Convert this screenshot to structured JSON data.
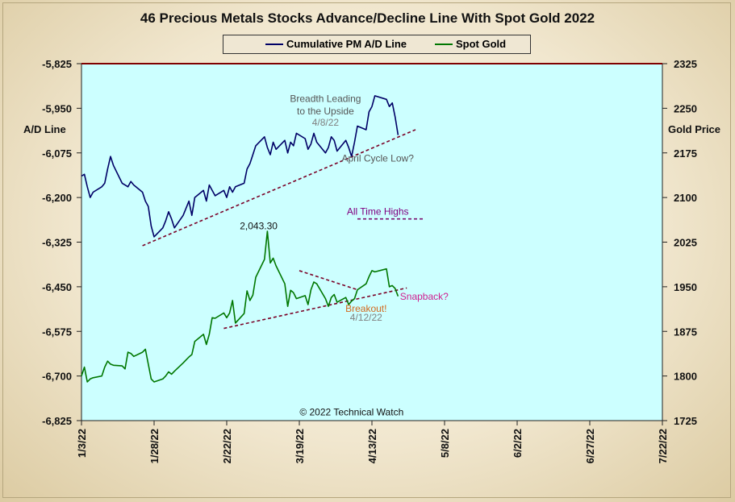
{
  "chart_data": {
    "type": "line",
    "title": "46 Precious Metals Stocks Advance/Decline Line With Spot Gold 2022",
    "ylabel_left": "A/D Line",
    "ylabel_right": "Gold Price",
    "ylim_left": [
      -6825,
      -5825
    ],
    "ylim_right": [
      1725,
      2325
    ],
    "yticks_left": [
      "-5,825",
      "-5,950",
      "-6,075",
      "-6,200",
      "-6,325",
      "-6,450",
      "-6,575",
      "-6,700",
      "-6,825"
    ],
    "yticks_right": [
      "2325",
      "2250",
      "2175",
      "2100",
      "2025",
      "1950",
      "1875",
      "1800",
      "1725"
    ],
    "xticks": [
      "1/3/22",
      "1/28/22",
      "2/22/22",
      "3/19/22",
      "4/13/22",
      "5/8/22",
      "6/2/22",
      "6/27/22",
      "7/22/22"
    ],
    "legend_placement": "top-center",
    "series": [
      {
        "name": "Cumulative PM A/D Line",
        "color": "#000066",
        "axis": "left",
        "points": [
          [
            "2022-01-03",
            -6140
          ],
          [
            "2022-01-04",
            -6135
          ],
          [
            "2022-01-05",
            -6170
          ],
          [
            "2022-01-06",
            -6200
          ],
          [
            "2022-01-07",
            -6185
          ],
          [
            "2022-01-10",
            -6170
          ],
          [
            "2022-01-11",
            -6160
          ],
          [
            "2022-01-12",
            -6120
          ],
          [
            "2022-01-13",
            -6085
          ],
          [
            "2022-01-14",
            -6110
          ],
          [
            "2022-01-17",
            -6160
          ],
          [
            "2022-01-18",
            -6165
          ],
          [
            "2022-01-19",
            -6170
          ],
          [
            "2022-01-20",
            -6155
          ],
          [
            "2022-01-21",
            -6165
          ],
          [
            "2022-01-24",
            -6185
          ],
          [
            "2022-01-25",
            -6210
          ],
          [
            "2022-01-26",
            -6225
          ],
          [
            "2022-01-27",
            -6280
          ],
          [
            "2022-01-28",
            -6310
          ],
          [
            "2022-01-31",
            -6285
          ],
          [
            "2022-02-01",
            -6265
          ],
          [
            "2022-02-02",
            -6240
          ],
          [
            "2022-02-03",
            -6260
          ],
          [
            "2022-02-04",
            -6285
          ],
          [
            "2022-02-07",
            -6250
          ],
          [
            "2022-02-08",
            -6230
          ],
          [
            "2022-02-09",
            -6210
          ],
          [
            "2022-02-10",
            -6250
          ],
          [
            "2022-02-11",
            -6200
          ],
          [
            "2022-02-14",
            -6180
          ],
          [
            "2022-02-15",
            -6210
          ],
          [
            "2022-02-16",
            -6165
          ],
          [
            "2022-02-17",
            -6180
          ],
          [
            "2022-02-18",
            -6195
          ],
          [
            "2022-02-21",
            -6180
          ],
          [
            "2022-02-22",
            -6200
          ],
          [
            "2022-02-23",
            -6170
          ],
          [
            "2022-02-24",
            -6185
          ],
          [
            "2022-02-25",
            -6170
          ],
          [
            "2022-02-28",
            -6160
          ],
          [
            "2022-03-01",
            -6120
          ],
          [
            "2022-03-02",
            -6105
          ],
          [
            "2022-03-03",
            -6080
          ],
          [
            "2022-03-04",
            -6055
          ],
          [
            "2022-03-07",
            -6030
          ],
          [
            "2022-03-08",
            -6060
          ],
          [
            "2022-03-09",
            -6080
          ],
          [
            "2022-03-10",
            -6045
          ],
          [
            "2022-03-11",
            -6065
          ],
          [
            "2022-03-14",
            -6040
          ],
          [
            "2022-03-15",
            -6075
          ],
          [
            "2022-03-16",
            -6045
          ],
          [
            "2022-03-17",
            -6055
          ],
          [
            "2022-03-18",
            -6020
          ],
          [
            "2022-03-21",
            -6035
          ],
          [
            "2022-03-22",
            -6065
          ],
          [
            "2022-03-23",
            -6050
          ],
          [
            "2022-03-24",
            -6020
          ],
          [
            "2022-03-25",
            -6045
          ],
          [
            "2022-03-28",
            -6075
          ],
          [
            "2022-03-29",
            -6060
          ],
          [
            "2022-03-30",
            -6030
          ],
          [
            "2022-03-31",
            -6040
          ],
          [
            "2022-04-01",
            -6070
          ],
          [
            "2022-04-04",
            -6040
          ],
          [
            "2022-04-05",
            -6060
          ],
          [
            "2022-04-06",
            -6085
          ],
          [
            "2022-04-07",
            -6045
          ],
          [
            "2022-04-08",
            -6000
          ],
          [
            "2022-04-11",
            -6010
          ],
          [
            "2022-04-12",
            -5960
          ],
          [
            "2022-04-13",
            -5945
          ],
          [
            "2022-04-14",
            -5915
          ],
          [
            "2022-04-18",
            -5925
          ],
          [
            "2022-04-19",
            -5945
          ],
          [
            "2022-04-20",
            -5935
          ],
          [
            "2022-04-21",
            -5975
          ],
          [
            "2022-04-22",
            -6025
          ]
        ]
      },
      {
        "name": "Spot Gold",
        "color": "#007700",
        "axis": "right",
        "points": [
          [
            "2022-01-03",
            1800
          ],
          [
            "2022-01-04",
            1815
          ],
          [
            "2022-01-05",
            1790
          ],
          [
            "2022-01-06",
            1795
          ],
          [
            "2022-01-07",
            1797
          ],
          [
            "2022-01-10",
            1800
          ],
          [
            "2022-01-11",
            1815
          ],
          [
            "2022-01-12",
            1825
          ],
          [
            "2022-01-13",
            1820
          ],
          [
            "2022-01-14",
            1818
          ],
          [
            "2022-01-17",
            1817
          ],
          [
            "2022-01-18",
            1812
          ],
          [
            "2022-01-19",
            1840
          ],
          [
            "2022-01-20",
            1838
          ],
          [
            "2022-01-21",
            1833
          ],
          [
            "2022-01-24",
            1840
          ],
          [
            "2022-01-25",
            1845
          ],
          [
            "2022-01-26",
            1820
          ],
          [
            "2022-01-27",
            1795
          ],
          [
            "2022-01-28",
            1790
          ],
          [
            "2022-01-31",
            1795
          ],
          [
            "2022-02-01",
            1800
          ],
          [
            "2022-02-02",
            1807
          ],
          [
            "2022-02-03",
            1803
          ],
          [
            "2022-02-04",
            1808
          ],
          [
            "2022-02-07",
            1822
          ],
          [
            "2022-02-08",
            1827
          ],
          [
            "2022-02-09",
            1832
          ],
          [
            "2022-02-10",
            1836
          ],
          [
            "2022-02-11",
            1858
          ],
          [
            "2022-02-14",
            1870
          ],
          [
            "2022-02-15",
            1853
          ],
          [
            "2022-02-16",
            1870
          ],
          [
            "2022-02-17",
            1898
          ],
          [
            "2022-02-18",
            1897
          ],
          [
            "2022-02-21",
            1906
          ],
          [
            "2022-02-22",
            1898
          ],
          [
            "2022-02-23",
            1906
          ],
          [
            "2022-02-24",
            1927
          ],
          [
            "2022-02-25",
            1889
          ],
          [
            "2022-02-28",
            1905
          ],
          [
            "2022-03-01",
            1943
          ],
          [
            "2022-03-02",
            1927
          ],
          [
            "2022-03-03",
            1936
          ],
          [
            "2022-03-04",
            1966
          ],
          [
            "2022-03-07",
            1996
          ],
          [
            "2022-03-08",
            2043.3
          ],
          [
            "2022-03-09",
            1990
          ],
          [
            "2022-03-10",
            1998
          ],
          [
            "2022-03-11",
            1985
          ],
          [
            "2022-03-14",
            1955
          ],
          [
            "2022-03-15",
            1917
          ],
          [
            "2022-03-16",
            1944
          ],
          [
            "2022-03-17",
            1940
          ],
          [
            "2022-03-18",
            1930
          ],
          [
            "2022-03-21",
            1935
          ],
          [
            "2022-03-22",
            1920
          ],
          [
            "2022-03-23",
            1945
          ],
          [
            "2022-03-24",
            1958
          ],
          [
            "2022-03-25",
            1955
          ],
          [
            "2022-03-28",
            1930
          ],
          [
            "2022-03-29",
            1917
          ],
          [
            "2022-03-30",
            1932
          ],
          [
            "2022-03-31",
            1937
          ],
          [
            "2022-04-01",
            1924
          ],
          [
            "2022-04-04",
            1932
          ],
          [
            "2022-04-05",
            1920
          ],
          [
            "2022-04-06",
            1926
          ],
          [
            "2022-04-07",
            1930
          ],
          [
            "2022-04-08",
            1945
          ],
          [
            "2022-04-11",
            1955
          ],
          [
            "2022-04-12",
            1967
          ],
          [
            "2022-04-13",
            1977
          ],
          [
            "2022-04-14",
            1975
          ],
          [
            "2022-04-18",
            1980
          ],
          [
            "2022-04-19",
            1950
          ],
          [
            "2022-04-20",
            1952
          ],
          [
            "2022-04-21",
            1947
          ],
          [
            "2022-04-22",
            1934
          ]
        ]
      }
    ],
    "trendlines": [
      {
        "axis": "left",
        "color": "#7a0026",
        "from": [
          "2022-01-24",
          -6335
        ],
        "to": [
          "2022-04-28",
          -6010
        ]
      },
      {
        "axis": "right",
        "color": "#7a0026",
        "from": [
          "2022-02-21",
          1880
        ],
        "to": [
          "2022-04-25",
          1948
        ]
      },
      {
        "axis": "right",
        "color": "#7a0026",
        "from": [
          "2022-03-19",
          1977
        ],
        "to": [
          "2022-04-08",
          1945
        ]
      },
      {
        "axis": "right",
        "color": "#7a0e6e",
        "from": [
          "2022-04-08",
          2064
        ],
        "to": [
          "2022-05-01",
          2064
        ]
      }
    ],
    "annotations": [
      {
        "text": "Breadth Leading",
        "color": "#555555",
        "x": "2022-03-28",
        "axis": "left",
        "y": -5932
      },
      {
        "text": "to the Upside",
        "color": "#555555",
        "x": "2022-03-28",
        "axis": "left",
        "y": -5967
      },
      {
        "text": "4/8/22",
        "color": "#808080",
        "x": "2022-03-28",
        "axis": "left",
        "y": -5999
      },
      {
        "text": "April Cycle Low?",
        "color": "#555555",
        "x": "2022-04-15",
        "axis": "left",
        "y": -6099
      },
      {
        "text": "All Time  Highs",
        "color": "#800080",
        "x": "2022-04-15",
        "axis": "right",
        "y": 2071
      },
      {
        "text": "2,043.30",
        "color": "#111111",
        "x": "2022-03-05",
        "axis": "right",
        "y": 2047
      },
      {
        "text": "Snapback?",
        "color": "#d02090",
        "x": "2022-05-01",
        "axis": "right",
        "y": 1928
      },
      {
        "text": "Breakout!",
        "color": "#d2691e",
        "x": "2022-04-11",
        "axis": "right",
        "y": 1908
      },
      {
        "text": "4/12/22",
        "color": "#808080",
        "x": "2022-04-11",
        "axis": "right",
        "y": 1893
      },
      {
        "text": "© 2022 Technical  Watch",
        "color": "#111111",
        "x": "2022-04-06",
        "axis": "right",
        "y": 1734
      }
    ],
    "grid": false
  },
  "colors": {
    "plot_background": "#ccffff",
    "top_band": "#800000"
  }
}
